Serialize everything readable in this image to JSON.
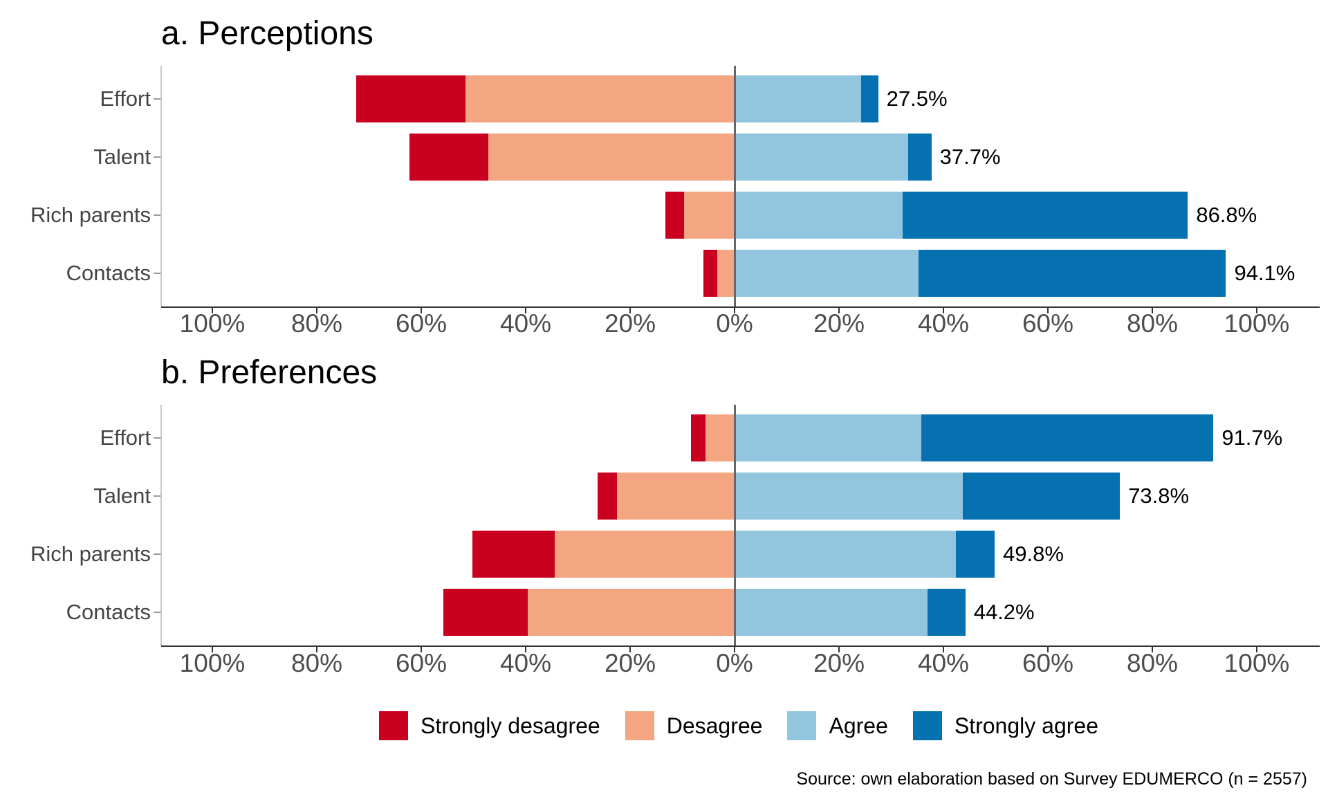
{
  "chart_data": {
    "type": "diverging_stacked_bar",
    "unit": "%",
    "orientation": "horizontal",
    "legend_position": "bottom",
    "grid": false,
    "legend": [
      {
        "key": "strongly_disagree",
        "label": "Strongly desagree",
        "color": "#CA0020"
      },
      {
        "key": "disagree",
        "label": "Desagree",
        "color": "#F4A582"
      },
      {
        "key": "agree",
        "label": "Agree",
        "color": "#92C5DE"
      },
      {
        "key": "strongly_agree",
        "label": "Strongly agree",
        "color": "#0571B0"
      }
    ],
    "axis": {
      "range": [
        -110,
        112
      ],
      "ticks": [
        {
          "value": -100,
          "label": "100%"
        },
        {
          "value": -80,
          "label": "80%"
        },
        {
          "value": -60,
          "label": "60%"
        },
        {
          "value": -40,
          "label": "40%"
        },
        {
          "value": -20,
          "label": "20%"
        },
        {
          "value": 0,
          "label": "0%"
        },
        {
          "value": 20,
          "label": "20%"
        },
        {
          "value": 40,
          "label": "40%"
        },
        {
          "value": 60,
          "label": "60%"
        },
        {
          "value": 80,
          "label": "80%"
        },
        {
          "value": 100,
          "label": "100%"
        }
      ]
    },
    "panels": [
      {
        "title": "a. Perceptions",
        "rows": [
          {
            "category": "Effort",
            "left_label": "72.5%",
            "right_label": "27.5%",
            "left_total": 72.5,
            "right_total": 27.5,
            "segments": {
              "strongly_disagree": 21.0,
              "disagree": 51.5,
              "agree": 24.2,
              "strongly_agree": 3.3
            }
          },
          {
            "category": "Talent",
            "left_label": "62.3%",
            "right_label": "37.7%",
            "left_total": 62.3,
            "right_total": 37.7,
            "segments": {
              "strongly_disagree": 15.2,
              "disagree": 47.1,
              "agree": 33.3,
              "strongly_agree": 4.4
            }
          },
          {
            "category": "Rich parents",
            "left_label": "13.2%",
            "right_label": "86.8%",
            "left_total": 13.2,
            "right_total": 86.8,
            "segments": {
              "strongly_disagree": 3.5,
              "disagree": 9.7,
              "agree": 32.2,
              "strongly_agree": 54.6
            }
          },
          {
            "category": "Contacts",
            "left_label": "5.9%",
            "right_label": "94.1%",
            "left_total": 5.9,
            "right_total": 94.1,
            "segments": {
              "strongly_disagree": 2.6,
              "disagree": 3.3,
              "agree": 35.2,
              "strongly_agree": 58.9
            }
          }
        ]
      },
      {
        "title": "b. Preferences",
        "rows": [
          {
            "category": "Effort",
            "left_label": "8.3%",
            "right_label": "91.7%",
            "left_total": 8.3,
            "right_total": 91.7,
            "segments": {
              "strongly_disagree": 2.8,
              "disagree": 5.5,
              "agree": 35.7,
              "strongly_agree": 56.0
            }
          },
          {
            "category": "Talent",
            "left_label": "26.2%",
            "right_label": "73.8%",
            "left_total": 26.2,
            "right_total": 73.8,
            "segments": {
              "strongly_disagree": 3.7,
              "disagree": 22.5,
              "agree": 43.7,
              "strongly_agree": 30.1
            }
          },
          {
            "category": "Rich parents",
            "left_label": "50.2%",
            "right_label": "49.8%",
            "left_total": 50.2,
            "right_total": 49.8,
            "segments": {
              "strongly_disagree": 15.7,
              "disagree": 34.5,
              "agree": 42.4,
              "strongly_agree": 7.4
            }
          },
          {
            "category": "Contacts",
            "left_label": "55.8%",
            "right_label": "44.2%",
            "left_total": 55.8,
            "right_total": 44.2,
            "segments": {
              "strongly_disagree": 16.2,
              "disagree": 39.6,
              "agree": 37.0,
              "strongly_agree": 7.2
            }
          }
        ]
      }
    ]
  },
  "source": {
    "text": "Source: own elaboration based on Survey EDUMERCO (n = 2557)"
  },
  "colors": {
    "strongly_disagree": "#CA0020",
    "disagree": "#F4A582",
    "agree": "#92C5DE",
    "strongly_agree": "#0571B0",
    "zero_line": "#666666",
    "baseline": "#333333",
    "panel_left_line": "#C9C9C9",
    "category_tick": "#999999",
    "tick_text": "#4D4D4D",
    "category_text": "#444444",
    "value_text": "#000000"
  }
}
